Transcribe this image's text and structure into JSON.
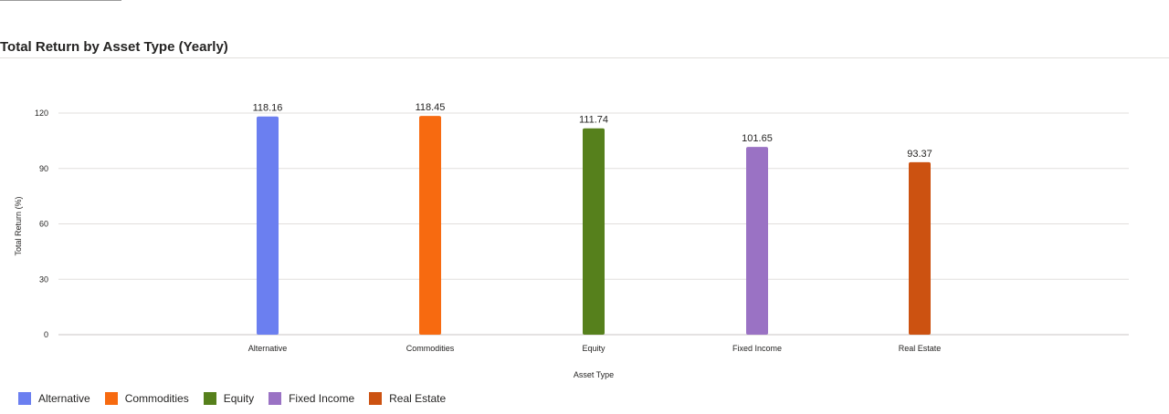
{
  "page": {
    "title": "Total Return by Asset Type (Yearly)"
  },
  "chart_data": {
    "type": "bar",
    "title": "Total Return by Asset Type (Yearly)",
    "xlabel": "Asset Type",
    "ylabel": "Total Return (%)",
    "categories": [
      "Alternative",
      "Commodities",
      "Equity",
      "Fixed Income",
      "Real Estate"
    ],
    "values": [
      118.16,
      118.45,
      111.74,
      101.65,
      93.37
    ],
    "value_labels": [
      "118.16",
      "118.45",
      "111.74",
      "101.65",
      "93.37"
    ],
    "colors": [
      "#6b7ff0",
      "#f76a10",
      "#56801c",
      "#9a72c4",
      "#cc5211"
    ],
    "ylim": [
      0,
      120
    ],
    "yticks": [
      "0",
      "30",
      "60",
      "90",
      "120"
    ],
    "grid": true,
    "legend_position": "bottom-left",
    "legend": [
      {
        "label": "Alternative",
        "color": "#6b7ff0"
      },
      {
        "label": "Commodities",
        "color": "#f76a10"
      },
      {
        "label": "Equity",
        "color": "#56801c"
      },
      {
        "label": "Fixed Income",
        "color": "#9a72c4"
      },
      {
        "label": "Real Estate",
        "color": "#cc5211"
      }
    ]
  }
}
